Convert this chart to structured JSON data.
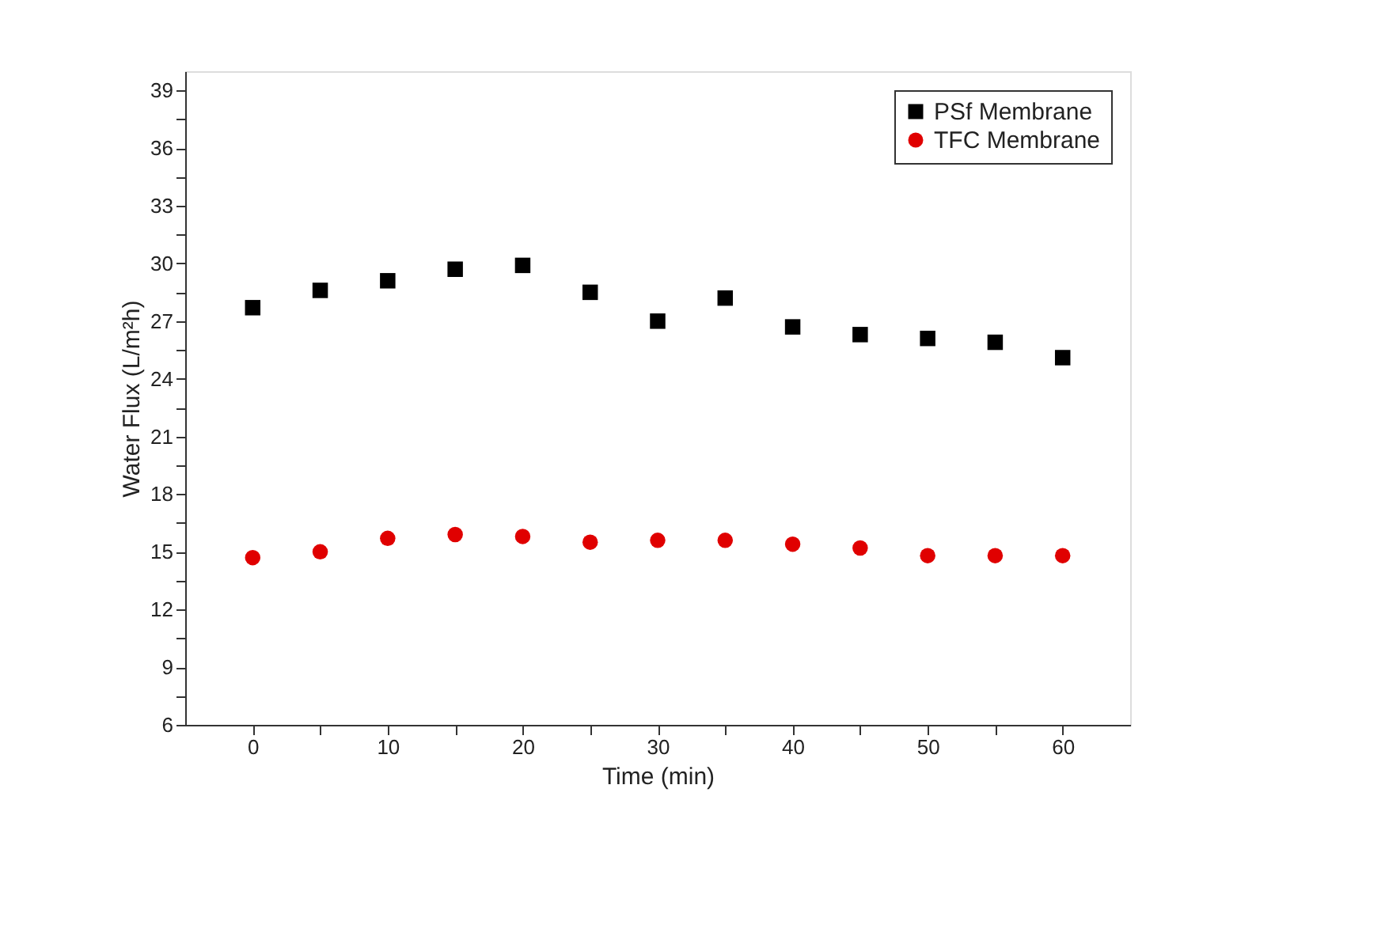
{
  "chart_data": {
    "type": "scatter",
    "xlabel": "Time (min)",
    "ylabel": "Water Flux (L/m²h)",
    "x": [
      0,
      5,
      10,
      15,
      20,
      25,
      30,
      35,
      40,
      45,
      50,
      55,
      60
    ],
    "series": [
      {
        "name": "PSf Membrane",
        "color": "#000000",
        "marker": "square",
        "values": [
          27.7,
          28.6,
          29.1,
          29.7,
          29.9,
          28.5,
          27.0,
          28.2,
          26.7,
          26.3,
          26.1,
          25.9,
          25.1
        ]
      },
      {
        "name": "TFC Membrane",
        "color": "#e00000",
        "marker": "circle",
        "values": [
          14.7,
          15.0,
          15.7,
          15.9,
          15.8,
          15.5,
          15.6,
          15.6,
          15.4,
          15.2,
          14.8,
          14.8,
          14.8
        ]
      }
    ],
    "xlim": [
      -5,
      65
    ],
    "xticks": [
      0,
      {
        "value": 5,
        "label": null
      },
      10,
      {
        "value": 15,
        "label": null
      },
      20,
      {
        "value": 25,
        "label": null
      },
      30,
      {
        "value": 35,
        "label": null
      },
      40,
      {
        "value": 45,
        "label": null
      },
      50,
      {
        "value": 55,
        "label": null
      },
      60
    ],
    "ylim": [
      6,
      40
    ],
    "yticks": [
      6,
      {
        "value": 7.5,
        "label": null
      },
      9,
      {
        "value": 10.5,
        "label": null
      },
      12,
      {
        "value": 13.5,
        "label": null
      },
      15,
      {
        "value": 16.5,
        "label": null
      },
      18,
      {
        "value": 19.5,
        "label": null
      },
      21,
      {
        "value": 22.5,
        "label": null
      },
      24,
      {
        "value": 25.5,
        "label": null
      },
      27,
      {
        "value": 28.5,
        "label": null
      },
      30,
      {
        "value": 31.5,
        "label": null
      },
      33,
      {
        "value": 34.5,
        "label": null
      },
      36,
      {
        "value": 37.5,
        "label": null
      },
      39
    ],
    "grid": false,
    "legend": "top right"
  }
}
